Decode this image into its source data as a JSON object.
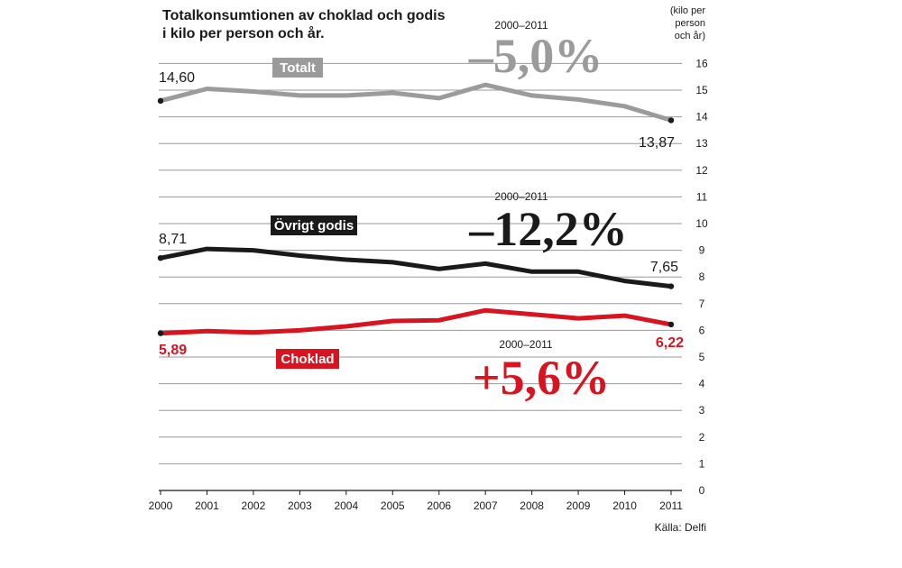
{
  "chart_data": {
    "type": "line",
    "title": "Totalkonsumtionen av choklad och godis i kilo per person och år.",
    "title_lines": [
      "Totalkonsumtionen av choklad och godis",
      "i kilo per person och år."
    ],
    "unit_label_lines": [
      "(kilo per",
      "person",
      "och år)"
    ],
    "x": [
      "2000",
      "2001",
      "2002",
      "2003",
      "2004",
      "2005",
      "2006",
      "2007",
      "2008",
      "2009",
      "2010",
      "2011"
    ],
    "ylim": [
      0,
      16
    ],
    "yticks": [
      0,
      1,
      2,
      3,
      4,
      5,
      6,
      7,
      8,
      9,
      10,
      11,
      12,
      13,
      14,
      15,
      16
    ],
    "grid": true,
    "source": "Källa: Delfi",
    "series": [
      {
        "key": "totalt",
        "name": "Totalt",
        "color": "#9b9b9b",
        "values": [
          14.6,
          15.05,
          14.95,
          14.8,
          14.8,
          14.9,
          14.7,
          15.2,
          14.8,
          14.65,
          14.4,
          13.87
        ],
        "start_label": "14,60",
        "end_label": "13,87",
        "period": "2000–2011",
        "change": "–5,0%"
      },
      {
        "key": "ovrigt",
        "name": "Övrigt godis",
        "color": "#1a1a1a",
        "values": [
          8.71,
          9.05,
          9.0,
          8.8,
          8.65,
          8.55,
          8.3,
          8.5,
          8.2,
          8.2,
          7.85,
          7.65
        ],
        "start_label": "8,71",
        "end_label": "7,65",
        "period": "2000–2011",
        "change": "–12,2%"
      },
      {
        "key": "choklad",
        "name": "Choklad",
        "color": "#d7141f",
        "values": [
          5.89,
          5.97,
          5.92,
          6.0,
          6.15,
          6.35,
          6.38,
          6.75,
          6.6,
          6.45,
          6.55,
          6.22
        ],
        "start_label": "5,89",
        "end_label": "6,22",
        "period": "2000–2011",
        "change": "+5,6%"
      }
    ]
  }
}
